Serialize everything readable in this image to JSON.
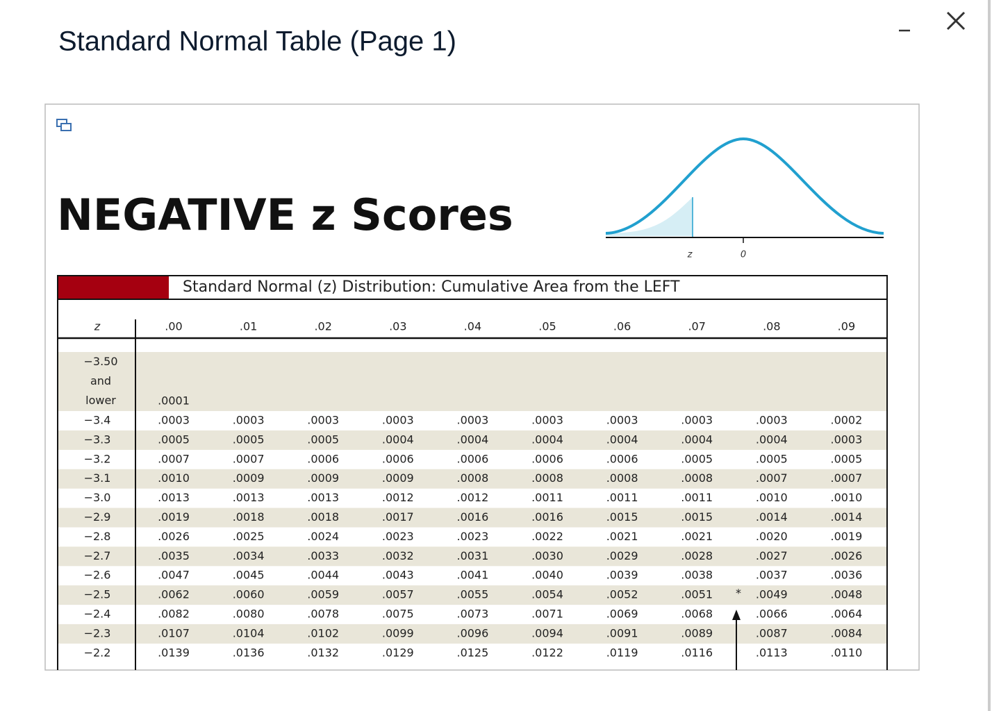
{
  "header": {
    "title": "Standard Normal Table (Page 1)"
  },
  "figure": {
    "heading": "NEGATIVE z Scores",
    "curve_z_label": "z",
    "curve_zero_label": "0",
    "table": {
      "caption": "Standard Normal (z) Distribution: Cumulative Area from the LEFT",
      "columns": [
        "z",
        ".00",
        ".01",
        ".02",
        ".03",
        ".04",
        ".05",
        ".06",
        ".07",
        ".08",
        ".09"
      ],
      "note_mark": "*",
      "rows": [
        {
          "z": "−3.50 and lower",
          "values": [
            ".0001"
          ]
        },
        {
          "z": "−3.4",
          "values": [
            ".0003",
            ".0003",
            ".0003",
            ".0003",
            ".0003",
            ".0003",
            ".0003",
            ".0003",
            ".0003",
            ".0002"
          ]
        },
        {
          "z": "−3.3",
          "values": [
            ".0005",
            ".0005",
            ".0005",
            ".0004",
            ".0004",
            ".0004",
            ".0004",
            ".0004",
            ".0004",
            ".0003"
          ]
        },
        {
          "z": "−3.2",
          "values": [
            ".0007",
            ".0007",
            ".0006",
            ".0006",
            ".0006",
            ".0006",
            ".0006",
            ".0005",
            ".0005",
            ".0005"
          ]
        },
        {
          "z": "−3.1",
          "values": [
            ".0010",
            ".0009",
            ".0009",
            ".0009",
            ".0008",
            ".0008",
            ".0008",
            ".0008",
            ".0007",
            ".0007"
          ]
        },
        {
          "z": "−3.0",
          "values": [
            ".0013",
            ".0013",
            ".0013",
            ".0012",
            ".0012",
            ".0011",
            ".0011",
            ".0011",
            ".0010",
            ".0010"
          ]
        },
        {
          "z": "−2.9",
          "values": [
            ".0019",
            ".0018",
            ".0018",
            ".0017",
            ".0016",
            ".0016",
            ".0015",
            ".0015",
            ".0014",
            ".0014"
          ]
        },
        {
          "z": "−2.8",
          "values": [
            ".0026",
            ".0025",
            ".0024",
            ".0023",
            ".0023",
            ".0022",
            ".0021",
            ".0021",
            ".0020",
            ".0019"
          ]
        },
        {
          "z": "−2.7",
          "values": [
            ".0035",
            ".0034",
            ".0033",
            ".0032",
            ".0031",
            ".0030",
            ".0029",
            ".0028",
            ".0027",
            ".0026"
          ]
        },
        {
          "z": "−2.6",
          "values": [
            ".0047",
            ".0045",
            ".0044",
            ".0043",
            ".0041",
            ".0040",
            ".0039",
            ".0038",
            ".0037",
            ".0036"
          ]
        },
        {
          "z": "−2.5",
          "values": [
            ".0062",
            ".0060",
            ".0059",
            ".0057",
            ".0055",
            ".0054",
            ".0052",
            ".0051",
            ".0049",
            ".0048"
          ]
        },
        {
          "z": "−2.4",
          "values": [
            ".0082",
            ".0080",
            ".0078",
            ".0075",
            ".0073",
            ".0071",
            ".0069",
            ".0068",
            ".0066",
            ".0064"
          ]
        },
        {
          "z": "−2.3",
          "values": [
            ".0107",
            ".0104",
            ".0102",
            ".0099",
            ".0096",
            ".0094",
            ".0091",
            ".0089",
            ".0087",
            ".0084"
          ]
        },
        {
          "z": "−2.2",
          "values": [
            ".0139",
            ".0136",
            ".0132",
            ".0129",
            ".0125",
            ".0122",
            ".0119",
            ".0116",
            ".0113",
            ".0110"
          ]
        }
      ]
    }
  }
}
